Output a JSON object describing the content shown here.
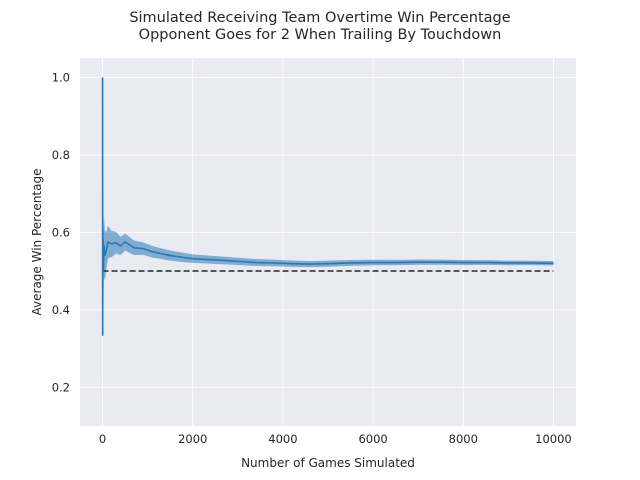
{
  "chart_data": {
    "type": "line",
    "title_line1": "Simulated Receiving Team Overtime Win Percentage",
    "title_line2": "Opponent Goes for 2 When Trailing By Touchdown",
    "xlabel": "Number of Games Simulated",
    "ylabel": "Average Win Percentage",
    "xlim": [
      -500,
      10500
    ],
    "ylim": [
      0.1,
      1.05
    ],
    "x_ticks": [
      0,
      2000,
      4000,
      6000,
      8000,
      10000
    ],
    "y_ticks": [
      0.2,
      0.4,
      0.6,
      0.8,
      1.0
    ],
    "x_tick_labels": [
      "0",
      "2000",
      "4000",
      "6000",
      "8000",
      "10000"
    ],
    "y_tick_labels": [
      "0.2",
      "0.4",
      "0.6",
      "0.8",
      "1.0"
    ],
    "grid": true,
    "background": "#eaeaf2",
    "series": [
      {
        "role": "running-average",
        "color": "#2878b5",
        "x": [
          1,
          2,
          3,
          5,
          8,
          12,
          20,
          30,
          50,
          80,
          120,
          200,
          300,
          400,
          500,
          700,
          900,
          1100,
          1300,
          1500,
          1800,
          2000,
          2300,
          2600,
          3000,
          3400,
          3800,
          4200,
          4600,
          5000,
          5500,
          6000,
          6500,
          7000,
          7500,
          8000,
          8500,
          9000,
          9500,
          10000
        ],
        "y": [
          1.0,
          0.5,
          0.333,
          0.6,
          0.5,
          0.583,
          0.5,
          0.567,
          0.54,
          0.55,
          0.575,
          0.57,
          0.573,
          0.565,
          0.575,
          0.56,
          0.558,
          0.55,
          0.545,
          0.54,
          0.535,
          0.532,
          0.53,
          0.528,
          0.525,
          0.522,
          0.521,
          0.519,
          0.518,
          0.519,
          0.521,
          0.522,
          0.522,
          0.523,
          0.523,
          0.522,
          0.522,
          0.521,
          0.521,
          0.52
        ],
        "band_halfwidth": [
          0.0,
          0.05,
          0.3,
          0.2,
          0.16,
          0.14,
          0.1,
          0.08,
          0.065,
          0.05,
          0.042,
          0.034,
          0.028,
          0.024,
          0.022,
          0.019,
          0.016,
          0.015,
          0.014,
          0.013,
          0.012,
          0.011,
          0.0105,
          0.01,
          0.0095,
          0.009,
          0.0085,
          0.0082,
          0.008,
          0.0078,
          0.0075,
          0.0072,
          0.007,
          0.0068,
          0.0066,
          0.0064,
          0.0062,
          0.006,
          0.0058,
          0.0057
        ]
      },
      {
        "role": "reference-line",
        "color": "#262626",
        "style": "dashed",
        "x": [
          0,
          10000
        ],
        "y": [
          0.5,
          0.5
        ]
      }
    ]
  }
}
